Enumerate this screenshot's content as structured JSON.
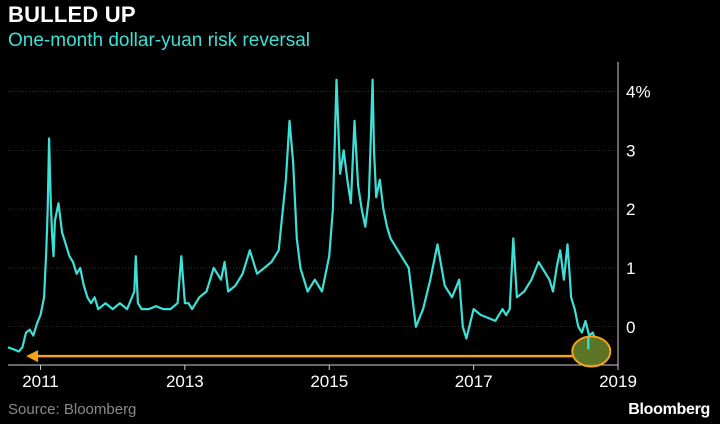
{
  "header": {
    "title": "BULLED UP",
    "subtitle": "One-month dollar-yuan risk reversal"
  },
  "footer": {
    "source": "Source: Bloomberg",
    "brand": "Bloomberg"
  },
  "colors": {
    "background": "#000000",
    "line": "#3de0d6",
    "subtitle": "#3de0d6",
    "arrow": "#f5a21b",
    "circle_fill": "#6b8a2a",
    "circle_stroke": "#f5a21b",
    "text": "#ffffff",
    "muted_text": "#8a8a8a",
    "grid": "#555555"
  },
  "chart_data": {
    "type": "line",
    "title": "BULLED UP",
    "subtitle": "One-month dollar-yuan risk reversal",
    "xlabel": "",
    "ylabel": "",
    "xlim": [
      2010.55,
      2019.0
    ],
    "ylim": [
      -0.65,
      4.5
    ],
    "x_ticks": [
      2011,
      2013,
      2015,
      2017,
      2019
    ],
    "x_tick_labels": [
      "2011",
      "2013",
      "2015",
      "2017",
      "2019"
    ],
    "y_ticks": [
      0,
      1,
      2,
      3,
      4
    ],
    "y_tick_labels": [
      "0",
      "1",
      "2",
      "3",
      "4%"
    ],
    "grid": "horizontal",
    "series": [
      {
        "name": "",
        "x": [
          2010.55,
          2010.62,
          2010.7,
          2010.75,
          2010.8,
          2010.85,
          2010.9,
          2010.95,
          2011.0,
          2011.05,
          2011.08,
          2011.1,
          2011.12,
          2011.14,
          2011.16,
          2011.18,
          2011.2,
          2011.25,
          2011.3,
          2011.35,
          2011.4,
          2011.45,
          2011.5,
          2011.55,
          2011.6,
          2011.65,
          2011.7,
          2011.75,
          2011.8,
          2011.9,
          2012.0,
          2012.1,
          2012.2,
          2012.3,
          2012.32,
          2012.35,
          2012.4,
          2012.5,
          2012.6,
          2012.7,
          2012.8,
          2012.9,
          2012.95,
          2013.0,
          2013.05,
          2013.1,
          2013.2,
          2013.3,
          2013.4,
          2013.5,
          2013.55,
          2013.6,
          2013.7,
          2013.8,
          2013.9,
          2014.0,
          2014.1,
          2014.2,
          2014.3,
          2014.4,
          2014.45,
          2014.5,
          2014.55,
          2014.6,
          2014.7,
          2014.8,
          2014.9,
          2015.0,
          2015.05,
          2015.1,
          2015.15,
          2015.2,
          2015.25,
          2015.3,
          2015.35,
          2015.4,
          2015.45,
          2015.5,
          2015.55,
          2015.6,
          2015.62,
          2015.65,
          2015.7,
          2015.75,
          2015.8,
          2015.85,
          2015.9,
          2016.0,
          2016.1,
          2016.15,
          2016.2,
          2016.3,
          2016.4,
          2016.5,
          2016.6,
          2016.7,
          2016.8,
          2016.85,
          2016.9,
          2017.0,
          2017.1,
          2017.2,
          2017.3,
          2017.4,
          2017.45,
          2017.5,
          2017.55,
          2017.6,
          2017.7,
          2017.8,
          2017.9,
          2018.0,
          2018.05,
          2018.1,
          2018.15,
          2018.2,
          2018.25,
          2018.3,
          2018.33,
          2018.35,
          2018.4,
          2018.45,
          2018.5,
          2018.55,
          2018.6,
          2018.65,
          2018.68
        ],
        "values": [
          -0.35,
          -0.38,
          -0.42,
          -0.35,
          -0.1,
          -0.05,
          -0.15,
          0.05,
          0.2,
          0.5,
          1.3,
          2.0,
          3.2,
          2.2,
          1.6,
          1.2,
          1.8,
          2.1,
          1.6,
          1.4,
          1.2,
          1.1,
          0.9,
          1.0,
          0.7,
          0.5,
          0.4,
          0.5,
          0.3,
          0.4,
          0.3,
          0.4,
          0.3,
          0.6,
          1.2,
          0.4,
          0.3,
          0.3,
          0.35,
          0.3,
          0.3,
          0.4,
          1.2,
          0.4,
          0.4,
          0.3,
          0.5,
          0.6,
          1.0,
          0.8,
          1.1,
          0.6,
          0.7,
          0.9,
          1.3,
          0.9,
          1.0,
          1.1,
          1.3,
          2.5,
          3.5,
          2.8,
          1.5,
          1.0,
          0.6,
          0.8,
          0.6,
          1.2,
          2.0,
          4.2,
          2.6,
          3.0,
          2.5,
          2.1,
          3.5,
          2.4,
          2.0,
          1.7,
          2.2,
          4.2,
          3.0,
          2.2,
          2.5,
          2.0,
          1.7,
          1.5,
          1.4,
          1.2,
          1.0,
          0.5,
          0.0,
          0.3,
          0.8,
          1.4,
          0.7,
          0.5,
          0.8,
          0.0,
          -0.2,
          0.3,
          0.2,
          0.15,
          0.1,
          0.3,
          0.2,
          0.3,
          1.5,
          0.5,
          0.6,
          0.8,
          1.1,
          0.9,
          0.8,
          0.6,
          1.0,
          1.3,
          0.8,
          1.4,
          0.9,
          0.5,
          0.3,
          0.0,
          -0.1,
          0.1,
          -0.15,
          -0.1,
          -0.2
        ]
      }
    ],
    "annotations": [
      {
        "type": "arrow",
        "from_x": 2018.4,
        "to_x": 2010.8,
        "y": -0.5,
        "color": "#f5a21b"
      },
      {
        "type": "circle",
        "x": 2018.63,
        "y": -0.42,
        "color": "#f5a21b"
      }
    ]
  }
}
